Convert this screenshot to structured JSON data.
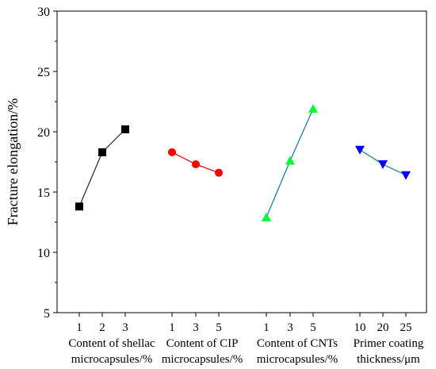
{
  "chart_data": {
    "type": "line",
    "ylabel": "Fracture elongation/%",
    "ylim": [
      5,
      30
    ],
    "yticks": [
      5,
      10,
      15,
      20,
      25,
      30
    ],
    "grid": false,
    "legend": "none",
    "series": [
      {
        "x": [
          "1",
          "2",
          "3"
        ],
        "values": [
          13.8,
          18.3,
          20.2
        ],
        "group_label": [
          "Content of shellac",
          "microcapsules/%"
        ],
        "color": "#000000",
        "line_color": "#333333",
        "marker": "square"
      },
      {
        "x": [
          "1",
          "3",
          "5"
        ],
        "values": [
          18.3,
          17.3,
          16.6
        ],
        "group_label": [
          "Content of CIP",
          "microcapsules/%"
        ],
        "color": "#ff0000",
        "line_color": "#ff0000",
        "marker": "circle"
      },
      {
        "x": [
          "1",
          "3",
          "5"
        ],
        "values": [
          12.9,
          17.6,
          21.9
        ],
        "group_label": [
          "Content of CNTs",
          "microcapsules/%"
        ],
        "color": "#00ff33",
        "line_color": "#1f77d0",
        "marker": "triangle-up"
      },
      {
        "x": [
          "10",
          "20",
          "25"
        ],
        "values": [
          18.5,
          17.3,
          16.4
        ],
        "group_label": [
          "Primer coating",
          "thickness/μm"
        ],
        "color": "#0000ff",
        "line_color": "#1a8f80",
        "marker": "triangle-down"
      }
    ]
  }
}
